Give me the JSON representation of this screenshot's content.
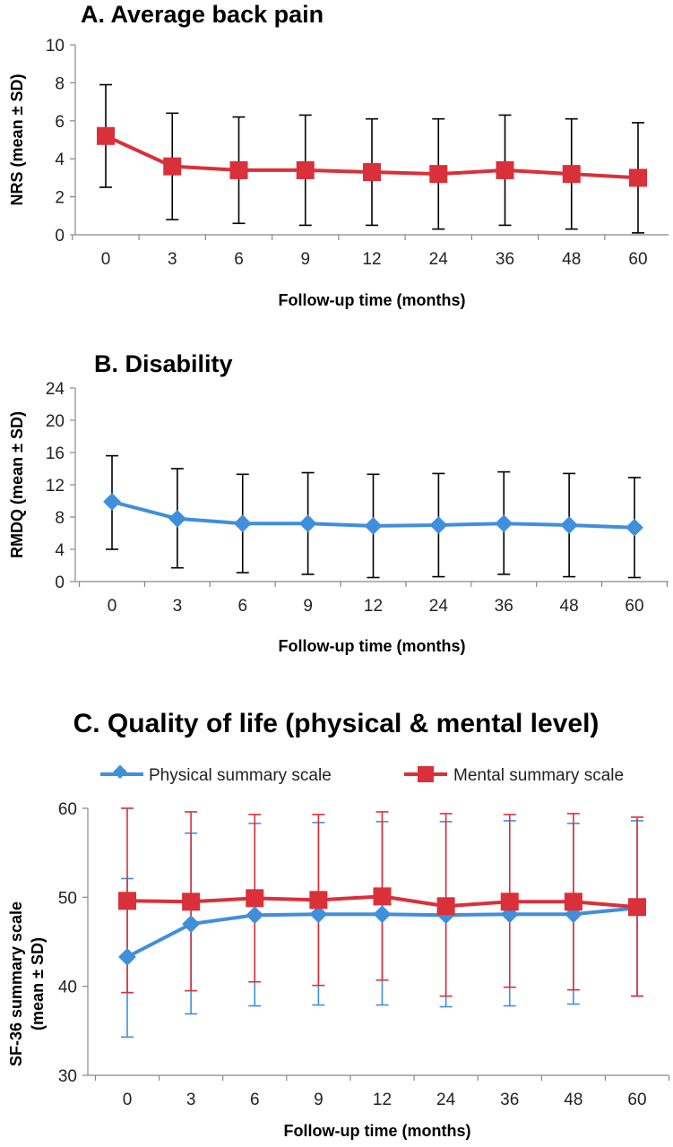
{
  "chart_data": [
    {
      "type": "line",
      "title": "A. Average back pain",
      "xlabel": "Follow-up time (months)",
      "ylabel": "NRS (mean ± SD)",
      "categories": [
        "0",
        "3",
        "6",
        "9",
        "12",
        "24",
        "36",
        "48",
        "60"
      ],
      "ylim": [
        0,
        10
      ],
      "yticks": [
        0,
        2,
        4,
        6,
        8,
        10
      ],
      "grid": false,
      "series": [
        {
          "marker": "square",
          "color": "#d9303a",
          "values": [
            5.2,
            3.6,
            3.4,
            3.4,
            3.3,
            3.2,
            3.4,
            3.2,
            3.0
          ],
          "error_upper": [
            7.9,
            6.4,
            6.2,
            6.3,
            6.1,
            6.1,
            6.3,
            6.1,
            5.9
          ],
          "error_lower": [
            2.5,
            0.8,
            0.6,
            0.5,
            0.5,
            0.3,
            0.5,
            0.3,
            0.1
          ],
          "error_color": "#000000"
        }
      ]
    },
    {
      "type": "line",
      "title": "B. Disability",
      "xlabel": "Follow-up time (months)",
      "ylabel": "RMDQ (mean ± SD)",
      "categories": [
        "0",
        "3",
        "6",
        "9",
        "12",
        "24",
        "36",
        "48",
        "60"
      ],
      "ylim": [
        0,
        24
      ],
      "yticks": [
        0,
        4,
        8,
        12,
        16,
        20,
        24
      ],
      "grid": false,
      "series": [
        {
          "marker": "diamond",
          "color": "#3f8fdc",
          "values": [
            9.9,
            7.8,
            7.2,
            7.2,
            6.9,
            7.0,
            7.2,
            7.0,
            6.7
          ],
          "error_upper": [
            15.6,
            14.0,
            13.3,
            13.5,
            13.3,
            13.4,
            13.6,
            13.4,
            12.9
          ],
          "error_lower": [
            4.0,
            1.7,
            1.1,
            0.9,
            0.5,
            0.6,
            0.9,
            0.6,
            0.5
          ],
          "error_color": "#000000"
        }
      ]
    },
    {
      "type": "line",
      "title": "C. Quality of life (physical & mental level)",
      "xlabel": "Follow-up time (months)",
      "ylabel_line1": "SF-36 summary scale",
      "ylabel_line2": "(mean ± SD)",
      "categories": [
        "0",
        "3",
        "6",
        "9",
        "12",
        "24",
        "36",
        "48",
        "60"
      ],
      "ylim": [
        30,
        60
      ],
      "yticks": [
        30,
        40,
        50,
        60
      ],
      "grid": false,
      "legend_position": "top",
      "series": [
        {
          "name": "Physical summary scale",
          "marker": "diamond",
          "color": "#3f8fdc",
          "values": [
            43.3,
            47.0,
            48.0,
            48.1,
            48.1,
            48.0,
            48.1,
            48.1,
            48.8
          ],
          "error_upper": [
            52.1,
            57.2,
            58.3,
            58.4,
            58.5,
            58.5,
            58.6,
            58.3,
            58.6
          ],
          "error_lower": [
            34.3,
            36.9,
            37.8,
            37.9,
            37.9,
            37.7,
            37.8,
            38.0,
            38.9
          ],
          "error_color": "#3f8fdc"
        },
        {
          "name": "Mental summary scale",
          "marker": "square",
          "color": "#d9303a",
          "values": [
            49.6,
            49.5,
            49.9,
            49.7,
            50.1,
            49.0,
            49.5,
            49.5,
            48.9
          ],
          "error_upper": [
            60.0,
            59.6,
            59.3,
            59.3,
            59.6,
            59.4,
            59.3,
            59.4,
            59.0
          ],
          "error_lower": [
            39.3,
            39.5,
            40.5,
            40.1,
            40.7,
            38.9,
            39.9,
            39.6,
            38.9
          ],
          "error_color": "#d9303a"
        }
      ]
    }
  ]
}
